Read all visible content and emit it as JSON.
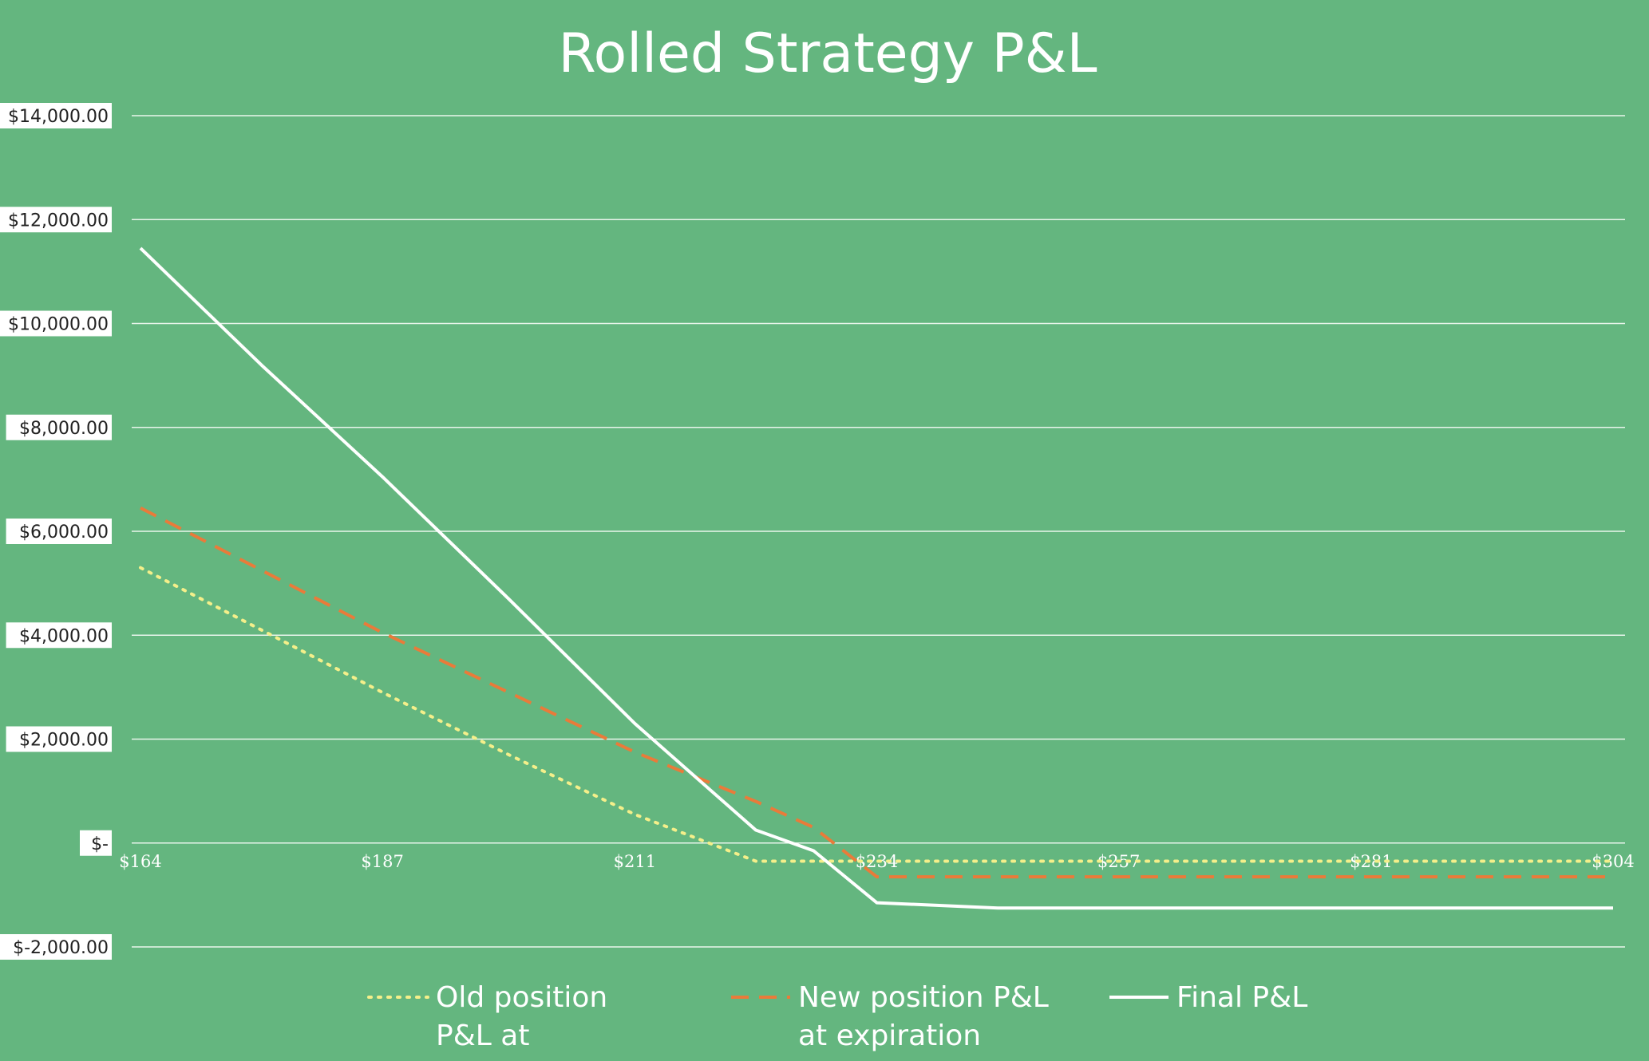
{
  "chart_data": {
    "type": "line",
    "title": "Rolled Strategy P&L",
    "xlabel": "",
    "ylabel": "",
    "x": [
      164,
      175.5,
      187,
      199,
      211,
      222.5,
      228,
      234,
      245.5,
      257,
      269,
      281,
      292.5,
      304
    ],
    "x_tick_labels": [
      "$164",
      "$187",
      "$211",
      "$234",
      "$257",
      "$281",
      "$304"
    ],
    "x_tick_values": [
      164,
      187,
      211,
      234,
      257,
      281,
      304
    ],
    "ylim": [
      -2000,
      14000
    ],
    "y_ticks": [
      -2000,
      0,
      2000,
      4000,
      6000,
      8000,
      10000,
      12000,
      14000
    ],
    "y_tick_labels": [
      "$-2,000.00",
      "$-",
      "$2,000.00",
      "$4,000.00",
      "$6,000.00",
      "$8,000.00",
      "$10,000.00",
      "$12,000.00",
      "$14,000.00"
    ],
    "grid": true,
    "legend_position": "bottom",
    "series": [
      {
        "name": "Old position P&L at expiration",
        "color": "#f4ef8a",
        "style": "dotted",
        "values": [
          5300,
          4100,
          2900,
          1700,
          550,
          -350,
          -350,
          -350,
          -350,
          -350,
          -350,
          -350,
          -350,
          -350
        ]
      },
      {
        "name": "New position P&L at expiration",
        "color": "#e97b3a",
        "style": "dashed",
        "values": [
          6450,
          5250,
          4050,
          2900,
          1750,
          800,
          300,
          -650,
          -650,
          -650,
          -650,
          -650,
          -650,
          -650
        ]
      },
      {
        "name": "Final P&L",
        "color": "#ffffff",
        "style": "solid",
        "values": [
          11450,
          9200,
          7050,
          4700,
          2300,
          250,
          -150,
          -1150,
          -1250,
          -1250,
          -1250,
          -1250,
          -1250,
          -1250
        ]
      }
    ]
  }
}
